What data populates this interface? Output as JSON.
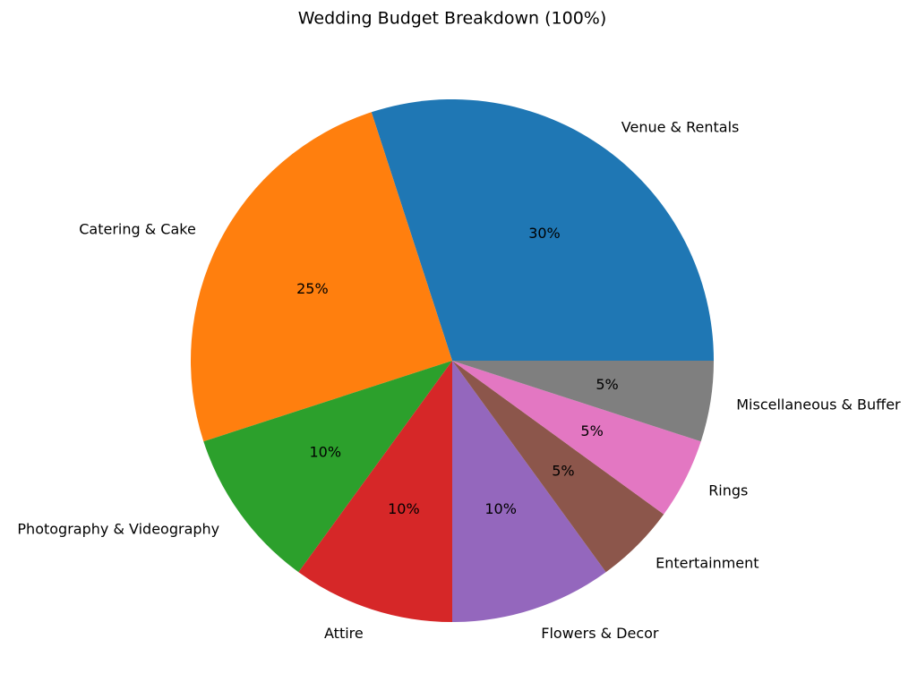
{
  "chart_data": {
    "type": "pie",
    "title": "Wedding Budget Breakdown (100%)",
    "categories": [
      "Venue & Rentals",
      "Catering & Cake",
      "Photography & Videography",
      "Attire",
      "Flowers & Decor",
      "Entertainment",
      "Rings",
      "Miscellaneous & Buffer"
    ],
    "values": [
      30,
      25,
      10,
      10,
      10,
      5,
      5,
      5
    ],
    "value_labels": [
      "30%",
      "25%",
      "10%",
      "10%",
      "10%",
      "5%",
      "5%",
      "5%"
    ],
    "colors": [
      "#1f77b4",
      "#ff7f0e",
      "#2ca02c",
      "#d62728",
      "#9467bd",
      "#8c564b",
      "#e377c2",
      "#7f7f7f"
    ]
  }
}
